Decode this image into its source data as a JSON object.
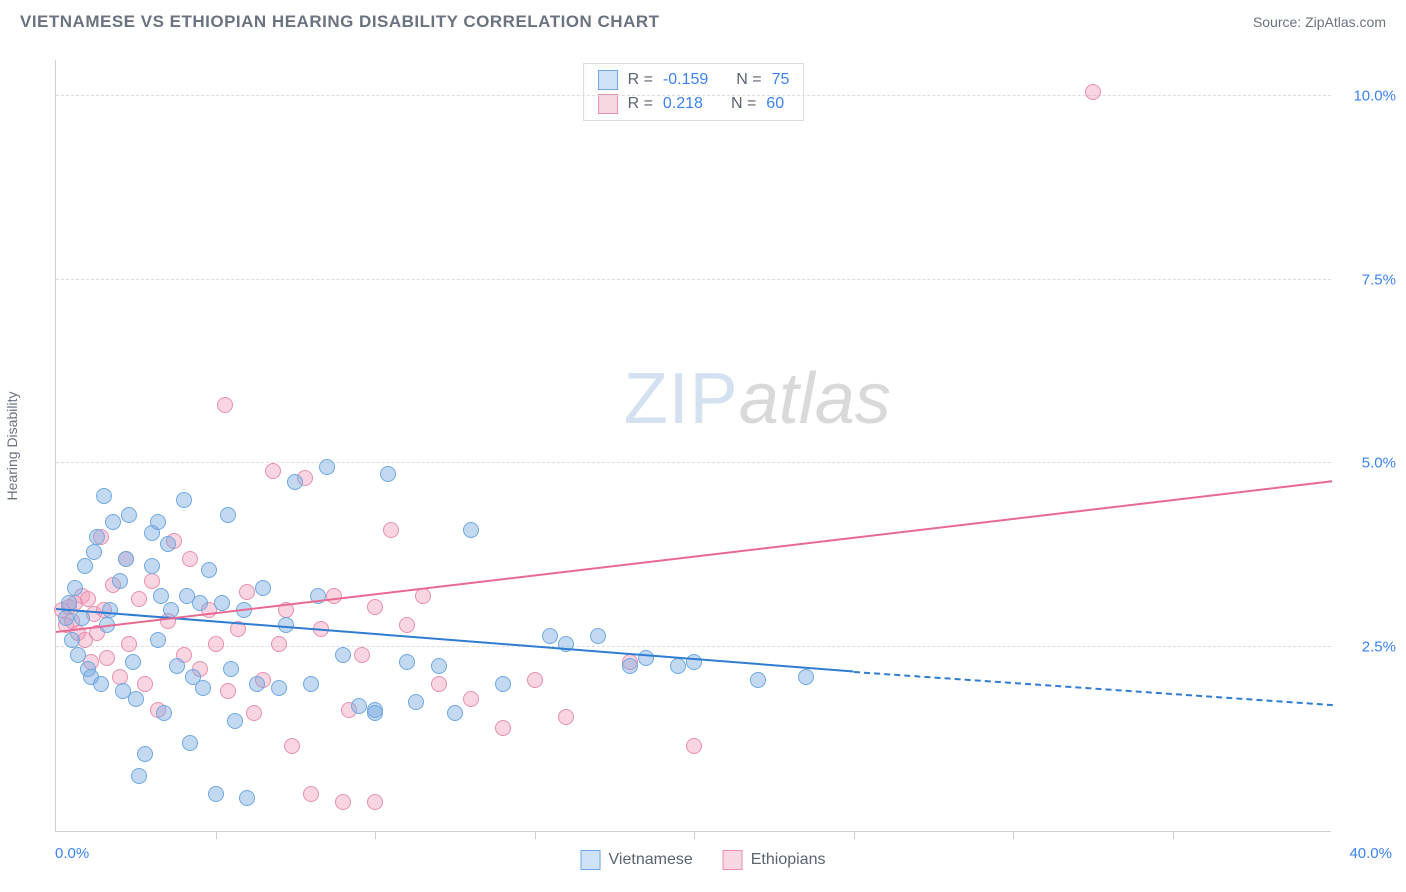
{
  "header": {
    "title": "VIETNAMESE VS ETHIOPIAN HEARING DISABILITY CORRELATION CHART",
    "source": "Source: ZipAtlas.com"
  },
  "axes": {
    "y_label": "Hearing Disability",
    "x_min": 0.0,
    "x_max": 40.0,
    "y_min": 0.0,
    "y_max": 10.5,
    "x_origin_label": "0.0%",
    "x_max_label": "40.0%",
    "y_ticks": [
      {
        "v": 2.5,
        "label": "2.5%"
      },
      {
        "v": 5.0,
        "label": "5.0%"
      },
      {
        "v": 7.5,
        "label": "7.5%"
      },
      {
        "v": 10.0,
        "label": "10.0%"
      }
    ],
    "x_tick_positions": [
      5,
      10,
      15,
      20,
      25,
      30,
      35
    ],
    "grid_color": "#dcdcdc"
  },
  "series": {
    "a": {
      "name": "Vietnamese",
      "color_fill": "rgba(120,170,225,0.45)",
      "color_stroke": "#6fa8e0",
      "swatch_fill": "#cfe2f8",
      "swatch_border": "#6fa8e0",
      "marker_size": 16,
      "r": "-0.159",
      "n": "75",
      "trend": {
        "x0": 0,
        "y0": 3.0,
        "x1": 25,
        "y1": 2.15,
        "solid_color": "#2f7dd1",
        "dash_to_x": 40,
        "dash_y": 1.7
      },
      "points": [
        [
          0.3,
          2.9
        ],
        [
          0.4,
          3.1
        ],
        [
          0.5,
          2.6
        ],
        [
          0.6,
          3.3
        ],
        [
          0.7,
          2.4
        ],
        [
          0.8,
          2.9
        ],
        [
          0.9,
          3.6
        ],
        [
          1.0,
          2.2
        ],
        [
          1.1,
          2.1
        ],
        [
          1.2,
          3.8
        ],
        [
          1.3,
          4.0
        ],
        [
          1.4,
          2.0
        ],
        [
          1.5,
          4.55
        ],
        [
          1.6,
          2.8
        ],
        [
          1.7,
          3.0
        ],
        [
          1.8,
          4.2
        ],
        [
          2.0,
          3.4
        ],
        [
          2.1,
          1.9
        ],
        [
          2.2,
          3.7
        ],
        [
          2.3,
          4.3
        ],
        [
          2.4,
          2.3
        ],
        [
          2.5,
          1.8
        ],
        [
          2.6,
          0.75
        ],
        [
          2.8,
          1.05
        ],
        [
          3.0,
          4.05
        ],
        [
          3.0,
          3.6
        ],
        [
          3.2,
          2.6
        ],
        [
          3.2,
          4.2
        ],
        [
          3.3,
          3.2
        ],
        [
          3.4,
          1.6
        ],
        [
          3.5,
          3.9
        ],
        [
          3.6,
          3.0
        ],
        [
          3.8,
          2.25
        ],
        [
          4.0,
          4.5
        ],
        [
          4.1,
          3.2
        ],
        [
          4.2,
          1.2
        ],
        [
          4.3,
          2.1
        ],
        [
          4.5,
          3.1
        ],
        [
          4.6,
          1.95
        ],
        [
          4.8,
          3.55
        ],
        [
          5.0,
          0.5
        ],
        [
          5.2,
          3.1
        ],
        [
          5.4,
          4.3
        ],
        [
          5.5,
          2.2
        ],
        [
          5.6,
          1.5
        ],
        [
          5.9,
          3.0
        ],
        [
          6.0,
          0.45
        ],
        [
          6.3,
          2.0
        ],
        [
          6.5,
          3.3
        ],
        [
          7.0,
          1.95
        ],
        [
          7.2,
          2.8
        ],
        [
          7.5,
          4.75
        ],
        [
          8.0,
          2.0
        ],
        [
          8.2,
          3.2
        ],
        [
          8.5,
          4.95
        ],
        [
          9.0,
          2.4
        ],
        [
          9.5,
          1.7
        ],
        [
          10.0,
          1.65
        ],
        [
          10.0,
          1.6
        ],
        [
          10.4,
          4.85
        ],
        [
          11.0,
          2.3
        ],
        [
          11.3,
          1.75
        ],
        [
          12.0,
          2.25
        ],
        [
          12.5,
          1.6
        ],
        [
          13.0,
          4.1
        ],
        [
          14.0,
          2.0
        ],
        [
          15.5,
          2.65
        ],
        [
          16.0,
          2.55
        ],
        [
          17.0,
          2.65
        ],
        [
          18.0,
          2.25
        ],
        [
          18.5,
          2.35
        ],
        [
          19.5,
          2.25
        ],
        [
          20.0,
          2.3
        ],
        [
          22.0,
          2.05
        ],
        [
          23.5,
          2.1
        ]
      ]
    },
    "b": {
      "name": "Ethiopians",
      "color_fill": "rgba(240,150,180,0.40)",
      "color_stroke": "#e88fb0",
      "swatch_fill": "#f6d7e2",
      "swatch_border": "#e88fb0",
      "marker_size": 16,
      "r": "0.218",
      "n": "60",
      "trend": {
        "x0": 0,
        "y0": 2.7,
        "x1": 40,
        "y1": 4.75,
        "solid_color": "#e86a93"
      },
      "points": [
        [
          0.2,
          3.0
        ],
        [
          0.3,
          2.8
        ],
        [
          0.4,
          3.05
        ],
        [
          0.5,
          2.85
        ],
        [
          0.6,
          3.1
        ],
        [
          0.7,
          2.7
        ],
        [
          0.8,
          3.2
        ],
        [
          0.9,
          2.6
        ],
        [
          1.0,
          3.15
        ],
        [
          1.1,
          2.3
        ],
        [
          1.2,
          2.95
        ],
        [
          1.3,
          2.7
        ],
        [
          1.4,
          4.0
        ],
        [
          1.5,
          3.0
        ],
        [
          1.6,
          2.35
        ],
        [
          1.8,
          3.35
        ],
        [
          2.0,
          2.1
        ],
        [
          2.2,
          3.7
        ],
        [
          2.3,
          2.55
        ],
        [
          2.6,
          3.15
        ],
        [
          2.8,
          2.0
        ],
        [
          3.0,
          3.4
        ],
        [
          3.2,
          1.65
        ],
        [
          3.5,
          2.85
        ],
        [
          3.7,
          3.95
        ],
        [
          4.0,
          2.4
        ],
        [
          4.2,
          3.7
        ],
        [
          4.5,
          2.2
        ],
        [
          4.8,
          3.0
        ],
        [
          5.0,
          2.55
        ],
        [
          5.3,
          5.8
        ],
        [
          5.4,
          1.9
        ],
        [
          5.7,
          2.75
        ],
        [
          6.0,
          3.25
        ],
        [
          6.2,
          1.6
        ],
        [
          6.5,
          2.05
        ],
        [
          6.8,
          4.9
        ],
        [
          7.0,
          2.55
        ],
        [
          7.2,
          3.0
        ],
        [
          7.4,
          1.15
        ],
        [
          7.8,
          4.8
        ],
        [
          8.0,
          0.5
        ],
        [
          8.3,
          2.75
        ],
        [
          8.7,
          3.2
        ],
        [
          9.0,
          0.4
        ],
        [
          9.2,
          1.65
        ],
        [
          9.6,
          2.4
        ],
        [
          10.0,
          0.4
        ],
        [
          10.0,
          3.05
        ],
        [
          10.5,
          4.1
        ],
        [
          11.0,
          2.8
        ],
        [
          11.5,
          3.2
        ],
        [
          12.0,
          2.0
        ],
        [
          13.0,
          1.8
        ],
        [
          14.0,
          1.4
        ],
        [
          15.0,
          2.05
        ],
        [
          16.0,
          1.55
        ],
        [
          18.0,
          2.3
        ],
        [
          20.0,
          1.15
        ],
        [
          32.5,
          10.05
        ]
      ]
    }
  },
  "watermark": {
    "a": "ZIP",
    "b": "atlas"
  },
  "legend_bottom": [
    "Vietnamese",
    "Ethiopians"
  ],
  "stats_labels": {
    "r": "R =",
    "n": "N ="
  }
}
